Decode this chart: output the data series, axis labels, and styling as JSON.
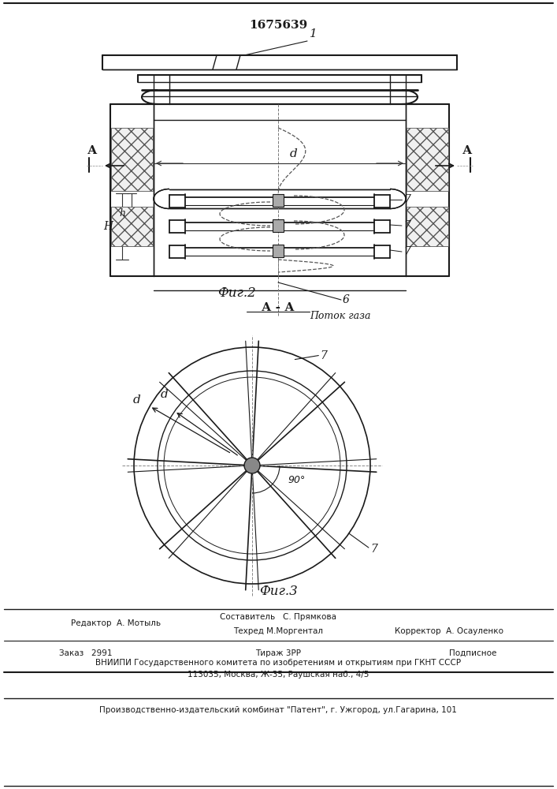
{
  "patent_number": "1675639",
  "fig2_label": "Фиг.2",
  "fig3_label": "Фиг.3",
  "aa_label": "А - А",
  "label_1": "1",
  "label_d": "d",
  "label_H": "H",
  "label_h": "h",
  "label_7": "7",
  "label_6": "6",
  "label_potok": "Поток газа",
  "label_A": "А",
  "label_90": "90°",
  "editor_line": "Редактор  А. Мотыль",
  "compiler_line": "Составитель   С. Прямкова",
  "techred_line": "Техред М.Моргентал",
  "corrector_line": "Корректор  А. Осауленко",
  "order_line": "Заказ   2991",
  "tirazh_line": "Тираж 3РР",
  "podpisnoe_line": "Подписное",
  "vniiipi_line": "ВНИИПИ Государственного комитета по изобретениям и открытиям при ГКНТ СССР",
  "address_line": "113035, Москва, Ж-35, Раушская наб., 4/5",
  "publisher_line": "Производственно-издательский комбинат \"Патент\", г. Ужгород, ул.Гагарина, 101",
  "bg_color": "#ffffff",
  "line_color": "#1a1a1a"
}
